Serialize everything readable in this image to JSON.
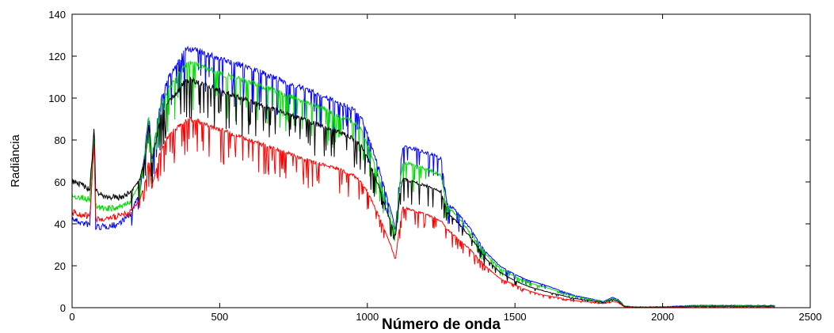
{
  "chart_data": {
    "type": "line",
    "title": "",
    "xlabel": "Número de onda",
    "ylabel": "Radiância",
    "xlim": [
      0,
      2500
    ],
    "ylim": [
      0,
      140
    ],
    "xticks": [
      0,
      500,
      1000,
      1500,
      2000,
      2500
    ],
    "yticks": [
      0,
      20,
      40,
      60,
      80,
      100,
      120,
      140
    ],
    "grid": false,
    "legend": "none",
    "series": [
      {
        "color": "#0000ff",
        "x": [
          0,
          30,
          60,
          75,
          80,
          100,
          150,
          200,
          230,
          250,
          260,
          270,
          300,
          330,
          350,
          380,
          400,
          450,
          500,
          600,
          700,
          800,
          900,
          950,
          980,
          1000,
          1040,
          1060,
          1080,
          1095,
          1110,
          1120,
          1130,
          1150,
          1200,
          1250,
          1270,
          1300,
          1350,
          1400,
          1450,
          1500,
          1550,
          1600,
          1700,
          1800,
          1830,
          1850,
          1870,
          1900,
          2000,
          2100,
          2200,
          2300,
          2380
        ],
        "y": [
          44,
          42,
          41,
          86,
          40,
          40,
          41,
          46,
          56,
          80,
          95,
          72,
          100,
          112,
          116,
          124,
          125,
          123,
          120,
          116,
          110,
          105,
          99,
          96,
          92,
          84,
          67,
          57,
          47,
          37,
          66,
          77,
          78,
          77,
          75,
          72,
          50,
          47,
          38,
          27,
          20,
          16,
          13,
          11,
          6,
          3,
          5,
          4,
          1,
          0.5,
          0.5,
          1.2,
          1.2,
          1.2,
          1.2
        ]
      },
      {
        "color": "#00dd00",
        "x": [
          0,
          30,
          60,
          75,
          80,
          100,
          150,
          200,
          230,
          250,
          260,
          270,
          300,
          330,
          350,
          380,
          400,
          450,
          500,
          600,
          700,
          800,
          900,
          950,
          980,
          1000,
          1040,
          1060,
          1080,
          1095,
          1110,
          1120,
          1130,
          1150,
          1200,
          1250,
          1270,
          1300,
          1350,
          1400,
          1450,
          1500,
          1550,
          1600,
          1700,
          1800,
          1830,
          1850,
          1870,
          1900,
          2000,
          2100,
          2200,
          2300,
          2380
        ],
        "y": [
          55,
          54,
          53,
          85,
          50,
          49,
          49,
          52,
          60,
          78,
          92,
          73,
          97,
          106,
          110,
          117,
          118,
          116,
          113,
          109,
          104,
          99,
          93,
          90,
          86,
          79,
          63,
          53,
          44,
          36,
          60,
          70,
          70,
          69,
          67,
          64,
          49,
          45,
          36,
          26,
          19,
          15,
          12,
          10,
          5.5,
          2.8,
          4.5,
          3.5,
          1,
          0.4,
          0.4,
          1,
          1,
          1,
          1
        ]
      },
      {
        "color": "#000000",
        "x": [
          0,
          30,
          60,
          75,
          80,
          100,
          150,
          200,
          230,
          250,
          260,
          270,
          300,
          330,
          350,
          380,
          400,
          450,
          500,
          600,
          700,
          800,
          900,
          950,
          980,
          1000,
          1040,
          1060,
          1080,
          1095,
          1110,
          1120,
          1130,
          1150,
          1200,
          1250,
          1270,
          1300,
          1350,
          1400,
          1450,
          1500,
          1550,
          1600,
          1700,
          1800,
          1830,
          1850,
          1870,
          1900,
          2000,
          2100,
          2200,
          2300,
          2380
        ],
        "y": [
          62,
          60,
          58,
          88,
          57,
          55,
          54,
          56,
          62,
          75,
          88,
          70,
          92,
          100,
          103,
          109,
          110,
          108,
          105,
          100,
          95,
          90,
          85,
          82,
          78,
          73,
          58,
          49,
          41,
          34,
          55,
          62,
          62,
          61,
          59,
          56,
          46,
          42,
          34,
          24,
          17,
          13,
          10,
          8,
          4.5,
          2.5,
          4,
          3,
          0.8,
          0.3,
          0.3,
          0.8,
          0.8,
          0.8,
          0.8
        ]
      },
      {
        "color": "#ff0000",
        "x": [
          0,
          30,
          60,
          75,
          80,
          100,
          150,
          200,
          230,
          250,
          260,
          270,
          300,
          330,
          350,
          380,
          400,
          450,
          500,
          600,
          700,
          800,
          900,
          950,
          980,
          1000,
          1040,
          1060,
          1080,
          1095,
          1110,
          1120,
          1130,
          1150,
          1200,
          1250,
          1270,
          1300,
          1350,
          1400,
          1450,
          1500,
          1550,
          1600,
          1700,
          1800,
          1830,
          1850,
          1870,
          1900,
          2000,
          2100,
          2200,
          2300,
          2380
        ],
        "y": [
          47,
          46,
          45,
          80,
          44,
          44,
          45,
          47,
          52,
          62,
          72,
          58,
          76,
          84,
          86,
          90,
          91,
          89,
          86,
          81,
          76,
          71,
          67,
          64,
          61,
          56,
          44,
          37,
          30,
          23,
          40,
          48,
          48,
          47,
          45,
          42,
          38,
          34,
          28,
          20,
          14,
          11,
          8,
          6,
          3.5,
          2,
          3,
          2.5,
          0.6,
          0.2,
          0.2,
          0.6,
          0.6,
          0.6,
          0.6
        ]
      }
    ]
  }
}
